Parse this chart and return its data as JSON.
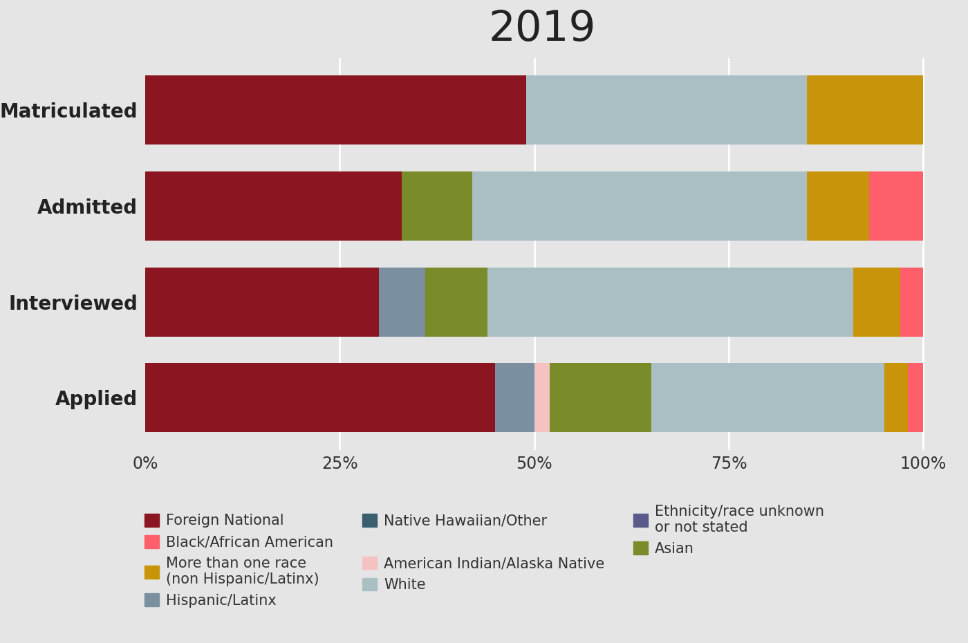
{
  "title": "2019",
  "categories": [
    "Applied",
    "Interviewed",
    "Admitted",
    "Matriculated"
  ],
  "segments": [
    {
      "name": "Foreign National",
      "color": "#8B1520",
      "values": [
        45.0,
        30.0,
        33.0,
        49.0
      ]
    },
    {
      "name": "Hispanic/Latinx",
      "color": "#7A8FA0",
      "values": [
        5.0,
        6.0,
        0.0,
        0.0
      ]
    },
    {
      "name": "American Indian/Alaska Native",
      "color": "#F5C2C2",
      "values": [
        2.0,
        0.0,
        0.0,
        0.0
      ]
    },
    {
      "name": "Asian",
      "color": "#7A8B2A",
      "values": [
        13.0,
        8.0,
        9.0,
        0.0
      ]
    },
    {
      "name": "Native Hawaiian/Other",
      "color": "#3A6070",
      "values": [
        0.0,
        0.0,
        0.0,
        0.0
      ]
    },
    {
      "name": "White",
      "color": "#AABFC4",
      "values": [
        30.0,
        47.0,
        43.0,
        36.0
      ]
    },
    {
      "name": "More than one race\n(non Hispanic/Latinx)",
      "color": "#C8950A",
      "values": [
        3.0,
        6.0,
        8.0,
        15.0
      ]
    },
    {
      "name": "Black/African American",
      "color": "#FF5F6A",
      "values": [
        2.0,
        3.0,
        7.0,
        0.0
      ]
    },
    {
      "name": "Ethnicity/race unknown\nor not stated",
      "color": "#5A5A8A",
      "values": [
        0.0,
        0.0,
        0.0,
        0.0
      ]
    }
  ],
  "legend_order": [
    "Foreign National",
    "Black/African American",
    "More than one race\n(non Hispanic/Latinx)",
    "Hispanic/Latinx",
    "Native Hawaiian/Other",
    "",
    "American Indian/Alaska Native",
    "White",
    "Ethnicity/race unknown\nor not stated",
    "Asian",
    "",
    ""
  ],
  "background_color": "#E5E5E5",
  "bar_height": 0.72,
  "title_fontsize": 44,
  "label_fontsize": 20,
  "tick_fontsize": 17,
  "legend_fontsize": 15
}
